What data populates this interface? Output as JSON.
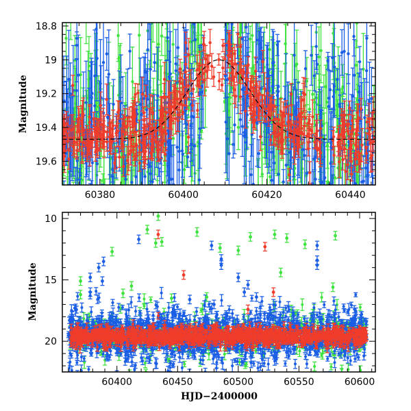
{
  "colors": {
    "blue": "#1a5ee6",
    "green": "#3fe33f",
    "red": "#f03c2a",
    "model": "#000000"
  },
  "chart_data": [
    {
      "type": "scatter",
      "panel": "top",
      "xlabel": "",
      "ylabel": "Magnitude",
      "xlim": [
        60371,
        60446
      ],
      "ylim": [
        19.74,
        18.78
      ],
      "y_inverted": true,
      "xticks": [
        60380,
        60400,
        60420,
        60440
      ],
      "yticks": [
        18.8,
        19,
        19.2,
        19.4,
        19.6
      ],
      "ytick_labels": [
        "18.8",
        "19",
        "19.2",
        "19.4",
        "19.6"
      ],
      "series": [
        {
          "color": "blue",
          "description_only": false,
          "x_range": [
            60371,
            60446
          ],
          "y_range": [
            18.78,
            19.74
          ]
        },
        {
          "color": "green",
          "x_range": [
            60371,
            60446
          ],
          "y_range": [
            18.78,
            19.74
          ]
        },
        {
          "color": "red",
          "x_range": [
            60371,
            60446
          ],
          "y_range": [
            18.9,
            19.7
          ]
        }
      ],
      "model_curve": {
        "style": "dashed",
        "x": [
          60371,
          60390,
          60400,
          60405,
          60408,
          60411,
          60415,
          60425,
          60446
        ],
        "y": [
          19.47,
          19.44,
          19.3,
          19.12,
          19.0,
          19.12,
          19.3,
          19.44,
          19.47
        ]
      }
    },
    {
      "type": "scatter",
      "panel": "bottom",
      "xlabel": "HJD−2400000",
      "ylabel": "Magnitude",
      "xlim": [
        60355,
        60613
      ],
      "ylim": [
        22.5,
        9.5
      ],
      "y_inverted": true,
      "xticks": [
        60400,
        60450,
        60500,
        60550,
        60600
      ],
      "yticks": [
        10,
        15,
        20
      ],
      "series": [
        {
          "color": "blue",
          "baseline_mag": 19.5
        },
        {
          "color": "green",
          "baseline_mag": 19.5
        },
        {
          "color": "red",
          "baseline_mag": 19.6
        }
      ],
      "outliers": [
        {
          "c": "green",
          "x": 60434,
          "y": 9.8
        },
        {
          "c": "green",
          "x": 60425,
          "y": 10.9
        },
        {
          "c": "green",
          "x": 60466,
          "y": 11.1
        },
        {
          "c": "green",
          "x": 60530,
          "y": 11.3
        },
        {
          "c": "green",
          "x": 60540,
          "y": 11.6
        },
        {
          "c": "green",
          "x": 60580,
          "y": 11.4
        },
        {
          "c": "green",
          "x": 60510,
          "y": 11.5
        },
        {
          "c": "green",
          "x": 60396,
          "y": 12.7
        },
        {
          "c": "green",
          "x": 60432,
          "y": 12.0
        },
        {
          "c": "green",
          "x": 60437,
          "y": 11.9
        },
        {
          "c": "green",
          "x": 60485,
          "y": 12.4
        },
        {
          "c": "green",
          "x": 60500,
          "y": 12.6
        },
        {
          "c": "green",
          "x": 60555,
          "y": 12.1
        },
        {
          "c": "green",
          "x": 60370,
          "y": 15.1
        },
        {
          "c": "green",
          "x": 60370,
          "y": 16.2
        },
        {
          "c": "green",
          "x": 60412,
          "y": 15.5
        },
        {
          "c": "green",
          "x": 60405,
          "y": 16.1
        },
        {
          "c": "green",
          "x": 60535,
          "y": 14.4
        },
        {
          "c": "green",
          "x": 60578,
          "y": 15.6
        },
        {
          "c": "green",
          "x": 60474,
          "y": 16.4
        },
        {
          "c": "green",
          "x": 60445,
          "y": 16.5
        },
        {
          "c": "blue",
          "x": 60418,
          "y": 11.7
        },
        {
          "c": "blue",
          "x": 60389,
          "y": 13.5
        },
        {
          "c": "blue",
          "x": 60385,
          "y": 14.0
        },
        {
          "c": "blue",
          "x": 60378,
          "y": 14.8
        },
        {
          "c": "blue",
          "x": 60388,
          "y": 15.1
        },
        {
          "c": "blue",
          "x": 60378,
          "y": 16.0
        },
        {
          "c": "blue",
          "x": 60478,
          "y": 12.2
        },
        {
          "c": "blue",
          "x": 60486,
          "y": 13.3
        },
        {
          "c": "blue",
          "x": 60486,
          "y": 13.8
        },
        {
          "c": "blue",
          "x": 60500,
          "y": 14.8
        },
        {
          "c": "blue",
          "x": 60508,
          "y": 15.4
        },
        {
          "c": "blue",
          "x": 60565,
          "y": 12.2
        },
        {
          "c": "blue",
          "x": 60565,
          "y": 13.4
        },
        {
          "c": "blue",
          "x": 60565,
          "y": 13.8
        },
        {
          "c": "blue",
          "x": 60505,
          "y": 16.0
        },
        {
          "c": "blue",
          "x": 60515,
          "y": 16.4
        },
        {
          "c": "blue",
          "x": 60480,
          "y": 17.0
        },
        {
          "c": "blue",
          "x": 60460,
          "y": 16.6
        },
        {
          "c": "red",
          "x": 60434,
          "y": 11.3
        },
        {
          "c": "red",
          "x": 60522,
          "y": 12.3
        },
        {
          "c": "red",
          "x": 60455,
          "y": 14.6
        },
        {
          "c": "red",
          "x": 60529,
          "y": 16.0
        },
        {
          "c": "red",
          "x": 60508,
          "y": 17.4
        }
      ]
    }
  ]
}
